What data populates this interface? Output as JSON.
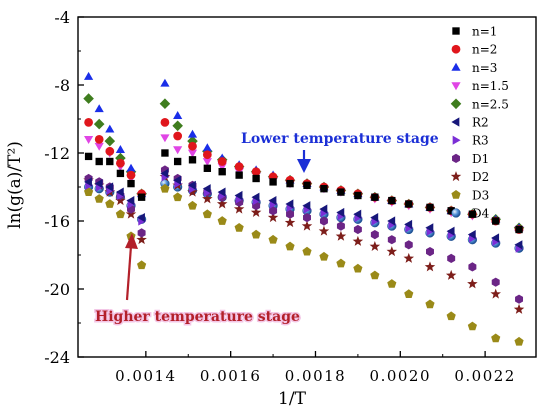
{
  "chart_data": {
    "type": "scatter",
    "xlabel": "1/T",
    "ylabel": "ln(g(a)/T²)",
    "xlim": [
      0.00124,
      0.00232
    ],
    "ylim": [
      -24,
      -4
    ],
    "xticks": [
      {
        "v": 0.0014,
        "label": "0.0014"
      },
      {
        "v": 0.0016,
        "label": "0.0016"
      },
      {
        "v": 0.0018,
        "label": "0.0018"
      },
      {
        "v": 0.002,
        "label": "0.0020"
      },
      {
        "v": 0.0022,
        "label": "0.0022"
      }
    ],
    "yticks": [
      {
        "v": -4,
        "label": "-4"
      },
      {
        "v": -8,
        "label": "-8"
      },
      {
        "v": -12,
        "label": "-12"
      },
      {
        "v": -16,
        "label": "-16"
      },
      {
        "v": -20,
        "label": "-20"
      },
      {
        "v": -24,
        "label": "-24"
      }
    ],
    "legend_position": "top-right",
    "annotations": [
      {
        "text": "Lower temperature stage",
        "color": "#1b2fd6"
      },
      {
        "text": "Higher temperature stage",
        "color": "#b3202a"
      }
    ],
    "x_high": [
      0.001265,
      0.00129,
      0.001315,
      0.00134,
      0.001365,
      0.00139
    ],
    "x_low": [
      0.001445,
      0.001475,
      0.00151,
      0.001545,
      0.00158,
      0.00162,
      0.00166,
      0.0017,
      0.00174,
      0.00178,
      0.00182,
      0.00186,
      0.0019,
      0.00194,
      0.00198,
      0.00202,
      0.00207,
      0.00212,
      0.00217,
      0.002225,
      0.00228
    ],
    "series": [
      {
        "name": "n=1",
        "marker": "square",
        "color": "#000000",
        "high": [
          -12.2,
          -12.5,
          -12.5,
          -13.2,
          -13.8,
          -14.6
        ],
        "low": [
          -12.0,
          -12.5,
          -12.4,
          -12.9,
          -13.1,
          -13.3,
          -13.5,
          -13.7,
          -13.8,
          -13.9,
          -14.1,
          -14.3,
          -14.5,
          -14.6,
          -14.8,
          -15.0,
          -15.2,
          -15.4,
          -15.6,
          -16.0,
          -16.5
        ]
      },
      {
        "name": "n=2",
        "marker": "circle",
        "color": "#e0161c",
        "high": [
          -10.2,
          -11.2,
          -11.9,
          -12.6,
          -13.3,
          -14.4
        ],
        "low": [
          -10.2,
          -11.0,
          -11.6,
          -12.1,
          -12.5,
          -12.8,
          -13.1,
          -13.4,
          -13.6,
          -13.8,
          -14.0,
          -14.2,
          -14.4,
          -14.6,
          -14.8,
          -15.0,
          -15.2,
          -15.4,
          -15.6,
          -16.0,
          -16.5
        ]
      },
      {
        "name": "n=3",
        "marker": "triangle-up",
        "color": "#1a2ee8",
        "high": [
          -7.5,
          -9.4,
          -10.6,
          -11.8,
          -12.9,
          -14.4
        ],
        "low": [
          -7.9,
          -9.8,
          -10.9,
          -11.7,
          -12.3,
          -12.7,
          -13.0,
          -13.3,
          -13.6,
          -13.8,
          -14.0,
          -14.2,
          -14.4,
          -14.6,
          -14.8,
          -15.0,
          -15.2,
          -15.4,
          -15.6,
          -15.9,
          -16.4
        ]
      },
      {
        "name": "n=1.5",
        "marker": "triangle-down",
        "color": "#e045e5",
        "high": [
          -11.2,
          -11.6,
          -12.0,
          -12.8,
          -13.5,
          -14.5
        ],
        "low": [
          -11.1,
          -11.8,
          -12.0,
          -12.5,
          -12.8,
          -13.1,
          -13.3,
          -13.6,
          -13.8,
          -13.9,
          -14.1,
          -14.3,
          -14.5,
          -14.7,
          -14.9,
          -15.1,
          -15.3,
          -15.5,
          -15.7,
          -16.0,
          -16.5
        ]
      },
      {
        "name": "n=2.5",
        "marker": "diamond",
        "color": "#3f7d1e",
        "high": [
          -8.8,
          -10.3,
          -11.3,
          -12.3,
          -13.1,
          -14.4
        ],
        "low": [
          -9.1,
          -10.4,
          -11.3,
          -11.9,
          -12.4,
          -12.8,
          -13.1,
          -13.4,
          -13.6,
          -13.8,
          -14.0,
          -14.2,
          -14.4,
          -14.6,
          -14.8,
          -15.0,
          -15.2,
          -15.4,
          -15.6,
          -15.9,
          -16.4
        ]
      },
      {
        "name": "R2",
        "marker": "triangle-left",
        "color": "#17177a",
        "high": [
          -13.7,
          -13.8,
          -14.0,
          -14.3,
          -14.8,
          -15.8
        ],
        "low": [
          -13.2,
          -13.6,
          -13.9,
          -14.1,
          -14.3,
          -14.5,
          -14.6,
          -14.8,
          -15.0,
          -15.1,
          -15.3,
          -15.5,
          -15.6,
          -15.8,
          -16.0,
          -16.2,
          -16.4,
          -16.6,
          -16.8,
          -17.0,
          -17.4
        ]
      },
      {
        "name": "R3",
        "marker": "triangle-right",
        "color": "#7b2fd6",
        "high": [
          -13.9,
          -14.0,
          -14.2,
          -14.5,
          -15.0,
          -16.0
        ],
        "low": [
          -13.4,
          -13.8,
          -14.1,
          -14.3,
          -14.5,
          -14.7,
          -14.8,
          -15.0,
          -15.2,
          -15.3,
          -15.5,
          -15.7,
          -15.8,
          -16.0,
          -16.2,
          -16.4,
          -16.6,
          -16.8,
          -17.0,
          -17.2,
          -17.6
        ]
      },
      {
        "name": "D1",
        "marker": "hexagon",
        "color": "#6b2586",
        "high": [
          -13.5,
          -13.7,
          -14.0,
          -14.5,
          -15.3,
          -16.7
        ],
        "low": [
          -13.0,
          -13.5,
          -13.9,
          -14.3,
          -14.6,
          -14.9,
          -15.1,
          -15.4,
          -15.6,
          -15.8,
          -16.0,
          -16.3,
          -16.5,
          -16.8,
          -17.1,
          -17.4,
          -17.8,
          -18.2,
          -18.7,
          -19.6,
          -20.6
        ]
      },
      {
        "name": "D2",
        "marker": "star",
        "color": "#7d1e1a",
        "high": [
          -13.6,
          -13.9,
          -14.3,
          -14.8,
          -15.6,
          -17.1
        ],
        "low": [
          -13.4,
          -13.9,
          -14.3,
          -14.7,
          -15.0,
          -15.3,
          -15.5,
          -15.8,
          -16.1,
          -16.3,
          -16.6,
          -16.9,
          -17.2,
          -17.5,
          -17.8,
          -18.2,
          -18.7,
          -19.2,
          -19.7,
          -20.3,
          -21.2
        ]
      },
      {
        "name": "D3",
        "marker": "pentagon",
        "color": "#9a8a18",
        "high": [
          -14.3,
          -14.7,
          -15.0,
          -15.6,
          -16.9,
          -18.6
        ],
        "low": [
          -14.1,
          -14.6,
          -15.1,
          -15.6,
          -16.0,
          -16.4,
          -16.8,
          -17.1,
          -17.5,
          -17.8,
          -18.1,
          -18.5,
          -18.8,
          -19.2,
          -19.7,
          -20.3,
          -20.9,
          -21.6,
          -22.2,
          -22.9,
          -23.1
        ]
      },
      {
        "name": "D4",
        "marker": "ball",
        "color": "#3c78bf",
        "high": [
          -14.0,
          -14.1,
          -14.3,
          -14.6,
          -15.1,
          -15.9
        ],
        "low": [
          -13.8,
          -14.0,
          -14.2,
          -14.4,
          -14.6,
          -14.8,
          -14.9,
          -15.1,
          -15.3,
          -15.4,
          -15.6,
          -15.8,
          -15.9,
          -16.1,
          -16.3,
          -16.5,
          -16.7,
          -16.9,
          -17.1,
          -17.3,
          -17.6
        ]
      }
    ]
  }
}
